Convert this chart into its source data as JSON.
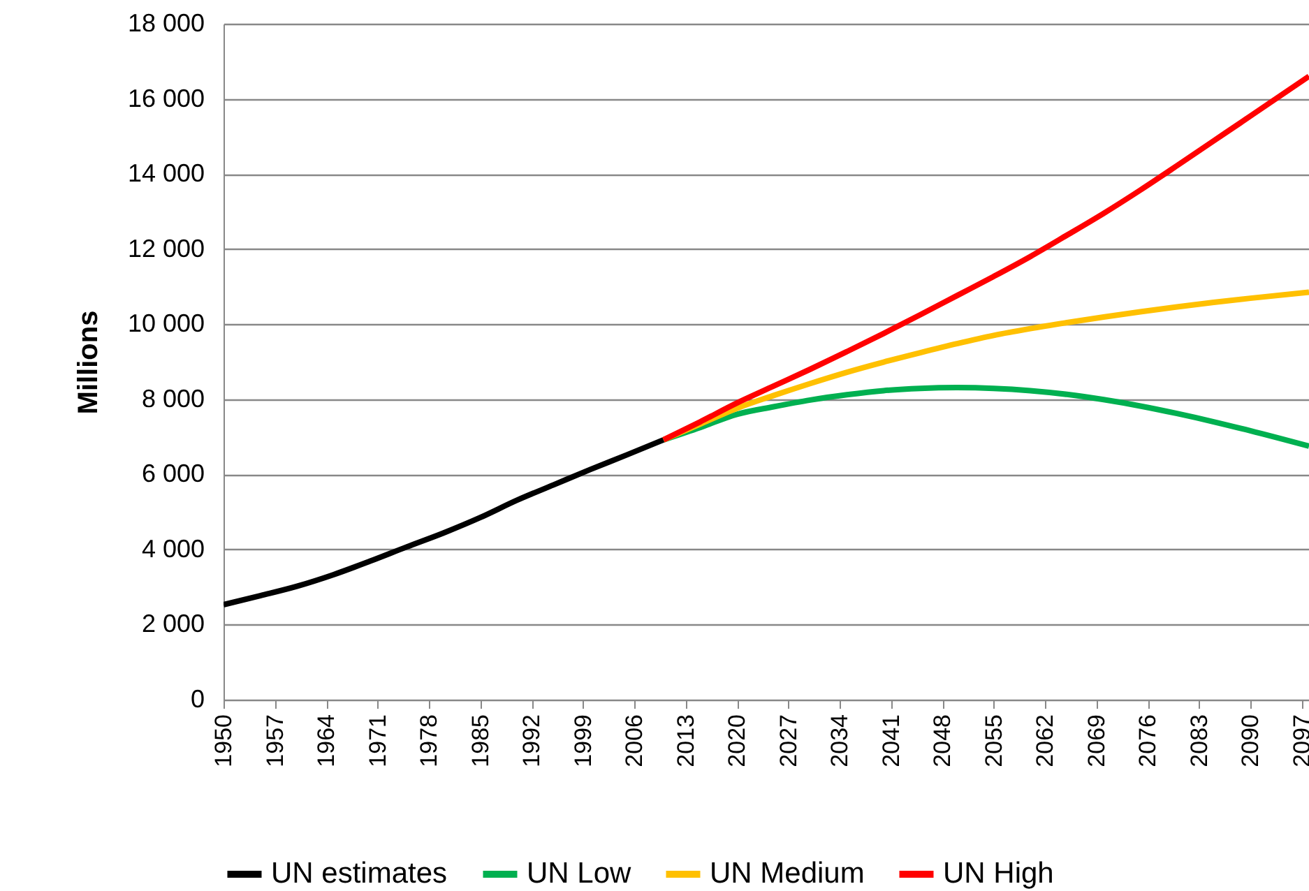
{
  "chart_data": {
    "type": "line",
    "ylabel": "Millions",
    "xlim": [
      1950,
      2098
    ],
    "xticks": [
      1950,
      1957,
      1964,
      1971,
      1978,
      1985,
      1992,
      1999,
      2006,
      2013,
      2020,
      2027,
      2034,
      2041,
      2048,
      2055,
      2062,
      2069,
      2076,
      2083,
      2090,
      2097
    ],
    "ylim": [
      0,
      18000
    ],
    "yticks": [
      0,
      {
        "value": 2000,
        "label": "2 000"
      },
      {
        "value": 4000,
        "label": "4 000"
      },
      {
        "value": 6000,
        "label": "6 000"
      },
      {
        "value": 8000,
        "label": "8 000"
      },
      {
        "value": 10000,
        "label": "10 000"
      },
      {
        "value": 12000,
        "label": "12 000"
      },
      {
        "value": 14000,
        "label": "14 000"
      },
      {
        "value": 16000,
        "label": "16 000"
      },
      {
        "value": 18000,
        "label": "18 000"
      }
    ],
    "grid": "y",
    "legend": "bottom",
    "series": [
      {
        "name": "UN estimates",
        "color": "#000000",
        "x": [
          1950,
          1955,
          1960,
          1965,
          1970,
          1975,
          1980,
          1985,
          1990,
          1995,
          2000,
          2005,
          2010
        ],
        "values": [
          2530,
          2770,
          3020,
          3330,
          3690,
          4070,
          4440,
          4850,
          5310,
          5720,
          6130,
          6520,
          6920
        ]
      },
      {
        "name": "UN Low",
        "color": "#00b050",
        "x": [
          2010,
          2015,
          2020,
          2025,
          2030,
          2035,
          2040,
          2045,
          2050,
          2055,
          2060,
          2065,
          2070,
          2075,
          2080,
          2085,
          2090,
          2098
        ],
        "values": [
          6920,
          7250,
          7600,
          7800,
          7980,
          8120,
          8230,
          8290,
          8310,
          8290,
          8230,
          8130,
          7990,
          7820,
          7620,
          7400,
          7160,
          6750
        ]
      },
      {
        "name": "UN Medium",
        "color": "#ffc000",
        "x": [
          2010,
          2015,
          2020,
          2025,
          2030,
          2035,
          2040,
          2045,
          2050,
          2055,
          2060,
          2065,
          2070,
          2075,
          2080,
          2085,
          2090,
          2098
        ],
        "values": [
          6920,
          7340,
          7760,
          8100,
          8420,
          8720,
          8990,
          9240,
          9480,
          9700,
          9880,
          10040,
          10190,
          10330,
          10460,
          10580,
          10690,
          10850
        ]
      },
      {
        "name": "UN High",
        "color": "#ff0000",
        "x": [
          2010,
          2015,
          2020,
          2025,
          2030,
          2035,
          2040,
          2045,
          2050,
          2055,
          2060,
          2065,
          2070,
          2075,
          2080,
          2085,
          2090,
          2098
        ],
        "values": [
          6920,
          7400,
          7900,
          8350,
          8800,
          9270,
          9750,
          10250,
          10760,
          11270,
          11800,
          12370,
          12950,
          13570,
          14220,
          14880,
          15540,
          16600
        ]
      }
    ]
  }
}
